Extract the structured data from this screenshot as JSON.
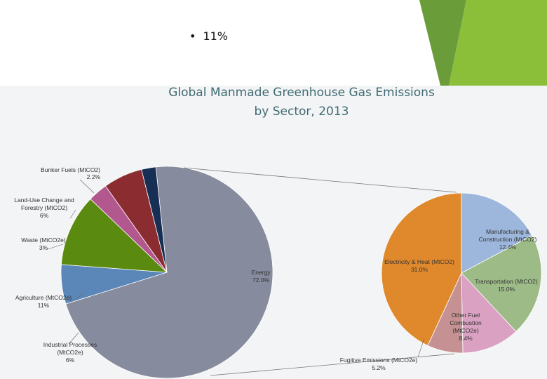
{
  "bullet": {
    "symbol": "•",
    "text": "11%"
  },
  "chart_data": {
    "type": "pie",
    "title_line1": "Global Manmade Greenhouse Gas Emissions",
    "title_line2": "by Sector, 2013",
    "main": {
      "slices": [
        {
          "name": "Energy",
          "value": 72.0,
          "label": "72.0%",
          "color": "#868b9d"
        },
        {
          "name": "Industrial Processes (MtCO2e)",
          "value": 6,
          "label": "6%",
          "color": "#5b87b8"
        },
        {
          "name": "Agriculture (MtCO2e)",
          "value": 11,
          "label": "11%",
          "color": "#5a8a0f"
        },
        {
          "name": "Waste (MtCO2e)",
          "value": 3,
          "label": "3%",
          "color": "#b2588f"
        },
        {
          "name": "Land-Use Change and Forestry (MtCO2)",
          "value": 6,
          "label": "6%",
          "color": "#8b2c30"
        },
        {
          "name": "Bunker Fuels (MtCO2)",
          "value": 2.2,
          "label": "2.2%",
          "color": "#172f54"
        }
      ]
    },
    "energy_breakdown": {
      "slices": [
        {
          "name": "Manufacturing & Construction (MtCO2)",
          "value": 12.4,
          "label": "12.4%",
          "color": "#9db7dc"
        },
        {
          "name": "Transportation (MtCO2)",
          "value": 15.0,
          "label": "15.0%",
          "color": "#9dbb86"
        },
        {
          "name": "Other Fuel Combustion (MtCO2e)",
          "value": 8.4,
          "label": "8.4%",
          "color": "#dba1c3"
        },
        {
          "name": "Fugitive Emissions (MtCO2e)",
          "value": 5.2,
          "label": "5.2%",
          "color": "#c59192"
        },
        {
          "name": "Electricity & Heat (MtCO2)",
          "value": 31.0,
          "label": "31.0%",
          "color": "#e0892c"
        }
      ]
    },
    "labels": {
      "bunker": [
        "Bunker Fuels (MtCO2)",
        "2.2%"
      ],
      "landuse": [
        "Land-Use Change and",
        "Forestry (MtCO2)",
        "6%"
      ],
      "waste": [
        "Waste (MtCO2e)",
        "3%"
      ],
      "agri": [
        "Agriculture (MtCO2e)",
        "11%"
      ],
      "industrial": [
        "Industrial Processes",
        "(MtCO2e)",
        "6%"
      ],
      "energy": [
        "Energy",
        "72.0%"
      ],
      "electricity": [
        "Electricity & Heat (MtCO2)",
        "31.0%"
      ],
      "manufacturing": [
        "Manufacturing &",
        "Construction (MtCO2)",
        "12.4%"
      ],
      "transportation": [
        "Transportation (MtCO2)",
        "15.0%"
      ],
      "otherfuel": [
        "Other Fuel",
        "Combustion",
        "(MtCO2e)",
        "8.4%"
      ],
      "fugitive": [
        "Fugitive Emissions (MtCO2e)",
        "5.2%"
      ]
    },
    "decor_colors": {
      "dark_green": "#6a9c3a",
      "light_green": "#8bbf3a",
      "title": "#3f6a73"
    }
  }
}
